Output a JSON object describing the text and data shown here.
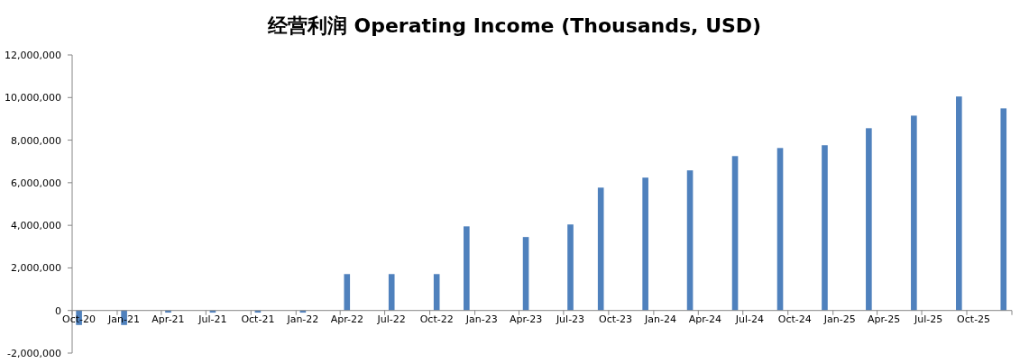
{
  "chart_data": {
    "type": "bar",
    "title": "经营利润 Operating Income (Thousands, USD)",
    "x": [
      "2020-10-15",
      "2021-01-15",
      "2021-04-15",
      "2021-07-15",
      "2021-10-15",
      "2022-01-15",
      "2022-04-15",
      "2022-07-15",
      "2022-10-15",
      "2022-12-15",
      "2023-04-15",
      "2023-07-15",
      "2023-09-15",
      "2023-12-15",
      "2024-03-15",
      "2024-06-15",
      "2024-09-15",
      "2024-12-15",
      "2025-03-15",
      "2025-06-15",
      "2025-09-15",
      "2025-12-15"
    ],
    "values": [
      -680000,
      -680000,
      -100000,
      -100000,
      -100000,
      -100000,
      1710000,
      1710000,
      1710000,
      3950000,
      3450000,
      4040000,
      5770000,
      6240000,
      6580000,
      7250000,
      7630000,
      7760000,
      8560000,
      9150000,
      10050000,
      9490000
    ],
    "color": "#4f81bd",
    "xlim": [
      "2020-10-01",
      "2026-01-01"
    ],
    "xticks": [
      {
        "value": "2020-10-15",
        "label": "Oct-20"
      },
      {
        "value": "2021-01-15",
        "label": "Jan-21"
      },
      {
        "value": "2021-04-15",
        "label": "Apr-21"
      },
      {
        "value": "2021-07-15",
        "label": "Jul-21"
      },
      {
        "value": "2021-10-15",
        "label": "Oct-21"
      },
      {
        "value": "2022-01-15",
        "label": "Jan-22"
      },
      {
        "value": "2022-04-15",
        "label": "Apr-22"
      },
      {
        "value": "2022-07-15",
        "label": "Jul-22"
      },
      {
        "value": "2022-10-15",
        "label": "Oct-22"
      },
      {
        "value": "2023-01-15",
        "label": "Jan-23"
      },
      {
        "value": "2023-04-15",
        "label": "Apr-23"
      },
      {
        "value": "2023-07-15",
        "label": "Jul-23"
      },
      {
        "value": "2023-10-15",
        "label": "Oct-23"
      },
      {
        "value": "2024-01-15",
        "label": "Jan-24"
      },
      {
        "value": "2024-04-15",
        "label": "Apr-24"
      },
      {
        "value": "2024-07-15",
        "label": "Jul-24"
      },
      {
        "value": "2024-10-15",
        "label": "Oct-24"
      },
      {
        "value": "2025-01-15",
        "label": "Jan-25"
      },
      {
        "value": "2025-04-15",
        "label": "Apr-25"
      },
      {
        "value": "2025-07-15",
        "label": "Jul-25"
      },
      {
        "value": "2025-10-15",
        "label": "Oct-25"
      }
    ],
    "ylim": [
      -2000000,
      12000000
    ],
    "yticks": [
      {
        "value": -2000000,
        "label": "-2,000,000"
      },
      {
        "value": 0,
        "label": "0"
      },
      {
        "value": 2000000,
        "label": "2,000,000"
      },
      {
        "value": 4000000,
        "label": "4,000,000"
      },
      {
        "value": 6000000,
        "label": "6,000,000"
      },
      {
        "value": 8000000,
        "label": "8,000,000"
      },
      {
        "value": 10000000,
        "label": "10,000,000"
      },
      {
        "value": 12000000,
        "label": "12,000,000"
      }
    ],
    "grid": false
  }
}
